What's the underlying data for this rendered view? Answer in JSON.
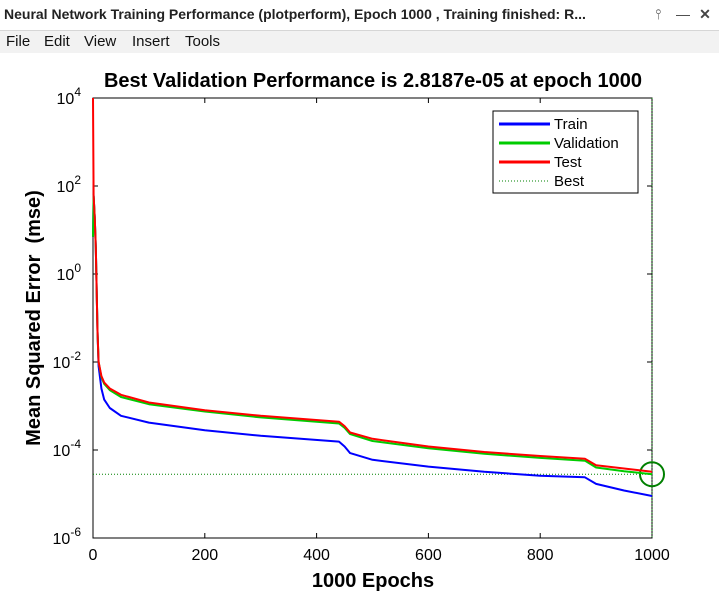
{
  "window": {
    "title": "Neural Network Training Performance (plotperform), Epoch 1000 , Training finished: R...",
    "pin_label": "⫯",
    "minimize_label": "—",
    "close_label": "✕"
  },
  "menu": {
    "items": [
      "File",
      "Edit",
      "View",
      "Insert",
      "Tools"
    ]
  },
  "chart_data": {
    "type": "line",
    "title": "Best Validation Performance is 2.8187e-05 at epoch 1000",
    "xlabel": "1000 Epochs",
    "ylabel": "Mean Squared Error  (mse)",
    "xlim": [
      0,
      1000
    ],
    "ylim": [
      1e-06,
      10000.0
    ],
    "yscale": "log",
    "xticks": [
      0,
      200,
      400,
      600,
      800,
      1000
    ],
    "xtick_labels": [
      "0",
      "200",
      "400",
      "600",
      "800",
      "1000"
    ],
    "yticks": [
      1e-06,
      0.0001,
      0.01,
      1,
      100.0,
      10000.0
    ],
    "ytick_bases": [
      "10",
      "10",
      "10",
      "10",
      "10",
      "10"
    ],
    "ytick_exps": [
      "-6",
      "-4",
      "-2",
      "0",
      "2",
      "4"
    ],
    "legend": {
      "placement": "top-right",
      "entries": [
        "Train",
        "Validation",
        "Test",
        "Best"
      ]
    },
    "best": {
      "epoch": 1000,
      "value": 2.8187e-05
    },
    "series": [
      {
        "name": "Train",
        "color": "#0000ff",
        "x": [
          0,
          1,
          3,
          5,
          8,
          10,
          15,
          20,
          30,
          50,
          100,
          200,
          300,
          440,
          450,
          460,
          500,
          600,
          700,
          800,
          880,
          900,
          950,
          1000
        ],
        "y": [
          7,
          60,
          20,
          4,
          0.05,
          0.008,
          0.0025,
          0.0014,
          0.0009,
          0.0006,
          0.00042,
          0.00028,
          0.00021,
          0.000155,
          0.00012,
          8.5e-05,
          6e-05,
          4.2e-05,
          3.2e-05,
          2.6e-05,
          2.4e-05,
          1.7e-05,
          1.2e-05,
          9e-06
        ]
      },
      {
        "name": "Validation",
        "color": "#00cc00",
        "x": [
          0,
          1,
          3,
          5,
          8,
          10,
          15,
          20,
          30,
          50,
          100,
          200,
          300,
          440,
          450,
          460,
          500,
          600,
          700,
          800,
          880,
          900,
          950,
          1000
        ],
        "y": [
          7,
          60,
          20,
          4,
          0.05,
          0.01,
          0.0045,
          0.0032,
          0.0023,
          0.0016,
          0.0011,
          0.00075,
          0.00055,
          0.0004,
          0.00032,
          0.00023,
          0.00016,
          0.00011,
          8.2e-05,
          6.6e-05,
          5.7e-05,
          4e-05,
          3.3e-05,
          2.8187e-05
        ]
      },
      {
        "name": "Test",
        "color": "#ff0000",
        "x": [
          0,
          1,
          3,
          5,
          8,
          10,
          15,
          20,
          30,
          50,
          100,
          200,
          300,
          440,
          450,
          460,
          500,
          600,
          700,
          800,
          880,
          900,
          950,
          1000
        ],
        "y": [
          10000,
          60,
          20,
          4,
          0.05,
          0.01,
          0.0048,
          0.0034,
          0.0025,
          0.0018,
          0.0012,
          0.0008,
          0.0006,
          0.00044,
          0.00035,
          0.00025,
          0.00018,
          0.00012,
          9e-05,
          7.3e-05,
          6.3e-05,
          4.5e-05,
          3.8e-05,
          3.2e-05
        ]
      }
    ]
  }
}
